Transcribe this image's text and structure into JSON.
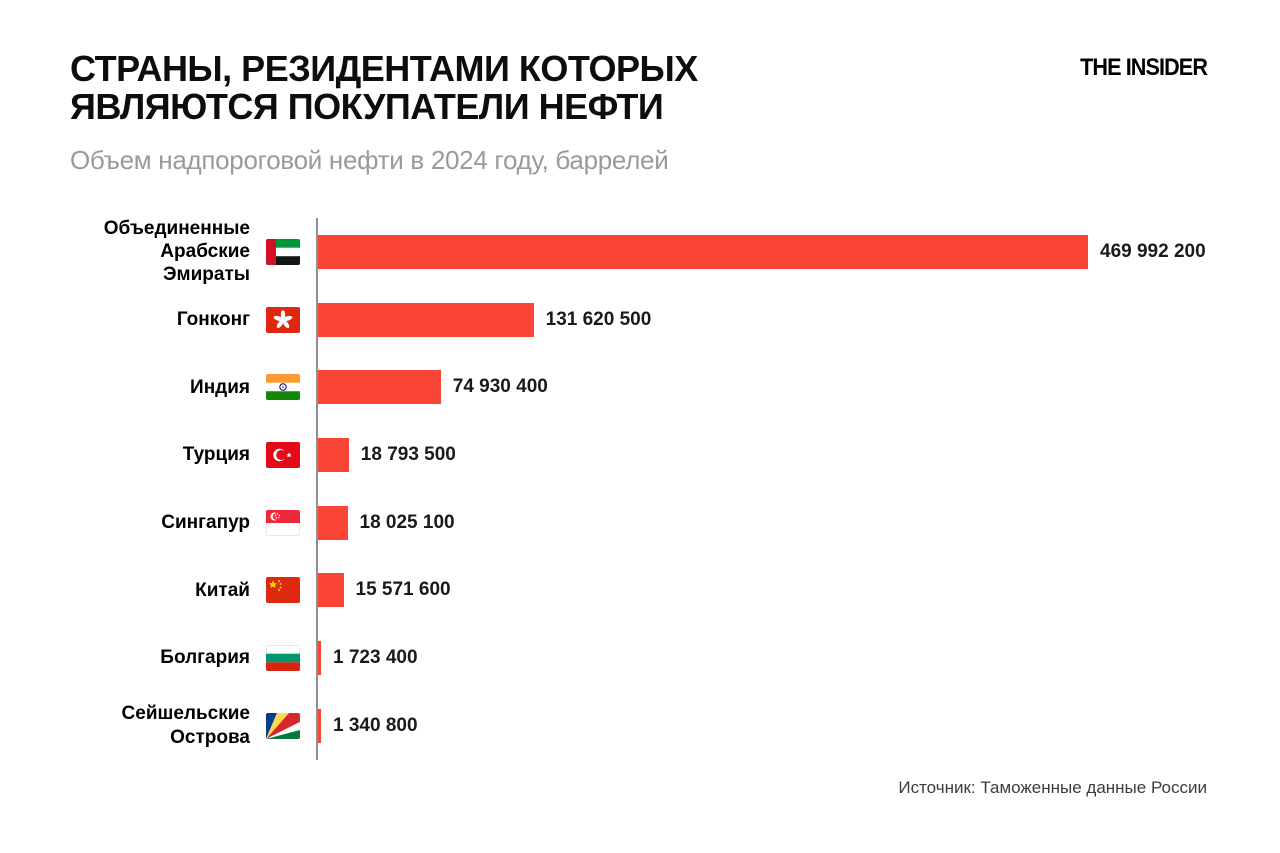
{
  "header": {
    "title_line1": "СТРАНЫ, РЕЗИДЕНТАМИ КОТОРЫХ",
    "title_line2": "ЯВЛЯЮТСЯ ПОКУПАТЕЛИ НЕФТИ",
    "subtitle": "Объем надпороговой нефти в 2024 году, баррелей",
    "logo": "THE INSIDER"
  },
  "footer": {
    "source": "Источник: Таможенные данные России"
  },
  "colors": {
    "bar": "#fa4437",
    "axis": "#909090",
    "subtitle": "#9a9a9a",
    "title": "#0d0d0d"
  },
  "chart_data": {
    "type": "bar",
    "orientation": "horizontal",
    "title": "СТРАНЫ, РЕЗИДЕНТАМИ КОТОРЫХ ЯВЛЯЮТСЯ ПОКУПАТЕЛИ НЕФТИ",
    "subtitle": "Объем надпороговой нефти в 2024 году, баррелей",
    "unit": "баррелей",
    "xlim": [
      0,
      469992200
    ],
    "grid": false,
    "legend": false,
    "categories": [
      "Объединенные Арабские Эмираты",
      "Гонконг",
      "Индия",
      "Турция",
      "Сингапур",
      "Китай",
      "Болгария",
      "Сейшельские Острова"
    ],
    "values": [
      469992200,
      131620500,
      74930400,
      18793500,
      18025100,
      15571600,
      1723400,
      1340800
    ],
    "rows": [
      {
        "label": "Объединенные Арабские Эмираты",
        "flag": "uae",
        "value": 469992200,
        "display": "469 992 200"
      },
      {
        "label": "Гонконг",
        "flag": "hong-kong",
        "value": 131620500,
        "display": "131 620 500"
      },
      {
        "label": "Индия",
        "flag": "india",
        "value": 74930400,
        "display": "74 930 400"
      },
      {
        "label": "Турция",
        "flag": "turkey",
        "value": 18793500,
        "display": "18 793 500"
      },
      {
        "label": "Сингапур",
        "flag": "singapore",
        "value": 18025100,
        "display": "18 025 100"
      },
      {
        "label": "Китай",
        "flag": "china",
        "value": 15571600,
        "display": "15 571 600"
      },
      {
        "label": "Болгария",
        "flag": "bulgaria",
        "value": 1723400,
        "display": "1 723 400"
      },
      {
        "label": "Сейшельские Острова",
        "flag": "seychelles",
        "value": 1340800,
        "display": "1 340 800"
      }
    ]
  }
}
